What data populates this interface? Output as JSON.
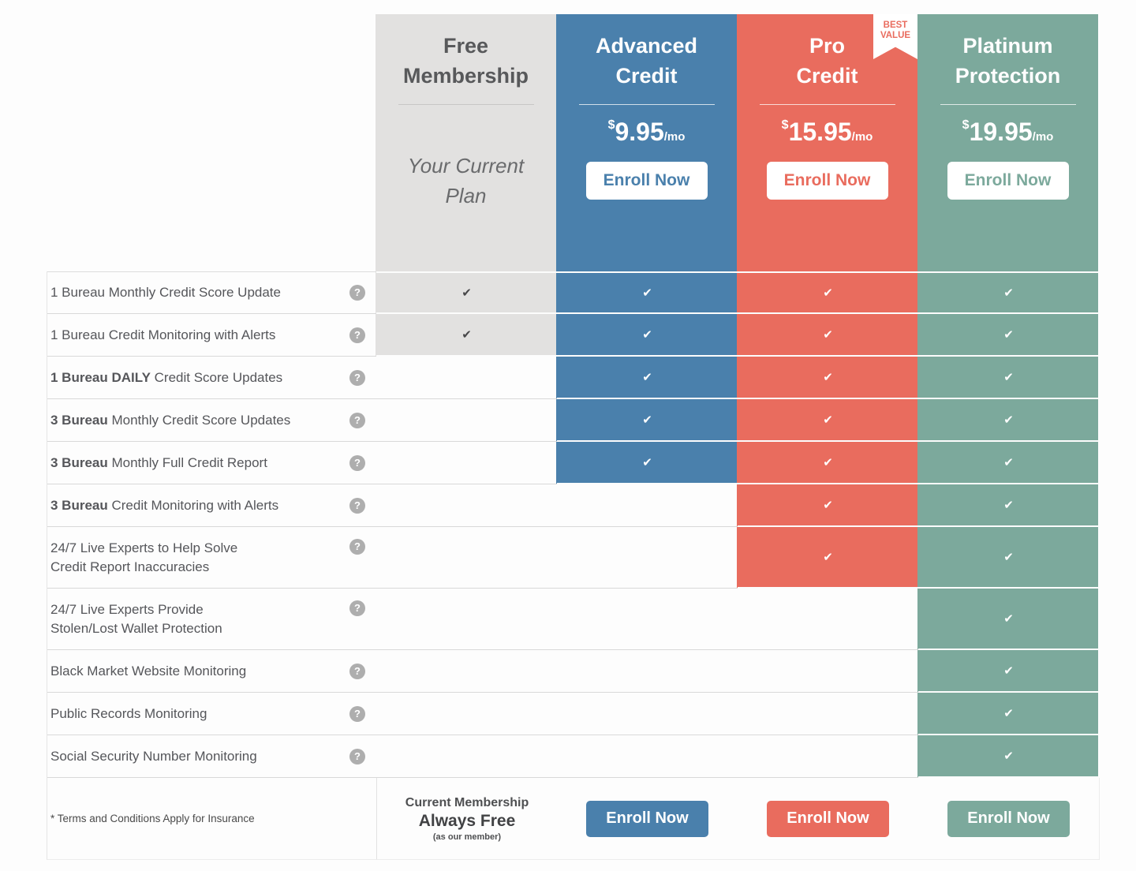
{
  "colors": {
    "free_bg": "#e2e1e0",
    "advanced": "#4a80ac",
    "pro": "#e96c5e",
    "platinum": "#7ca99c",
    "label_text": "#55565a"
  },
  "header": {
    "free": {
      "title": "Free\nMembership",
      "subtitle": "Your Current\nPlan"
    },
    "advanced": {
      "title": "Advanced\nCredit",
      "currency": "$",
      "price": "9.95",
      "per": "/mo",
      "cta": "Enroll Now"
    },
    "pro": {
      "title": "Pro\nCredit",
      "currency": "$",
      "price": "15.95",
      "per": "/mo",
      "cta": "Enroll Now",
      "badge_line1": "BEST",
      "badge_line2": "VALUE"
    },
    "platinum": {
      "title": "Platinum\nProtection",
      "currency": "$",
      "price": "19.95",
      "per": "/mo",
      "cta": "Enroll Now"
    }
  },
  "help_icon": "?",
  "features": [
    {
      "bold": "",
      "text": "1 Bureau Monthly Credit Score Update",
      "checks": [
        "✔",
        "✔",
        "✔",
        "✔"
      ]
    },
    {
      "bold": "",
      "text": "1 Bureau Credit Monitoring with Alerts",
      "checks": [
        "✔",
        "✔",
        "✔",
        "✔"
      ]
    },
    {
      "bold": "1 Bureau DAILY",
      "text": " Credit Score Updates",
      "checks": [
        "",
        "✔",
        "✔",
        "✔"
      ]
    },
    {
      "bold": "3 Bureau",
      "text": " Monthly Credit Score Updates",
      "checks": [
        "",
        "✔",
        "✔",
        "✔"
      ]
    },
    {
      "bold": "3 Bureau",
      "text": " Monthly Full Credit Report",
      "checks": [
        "",
        "✔",
        "✔",
        "✔"
      ]
    },
    {
      "bold": "3 Bureau",
      "text": " Credit Monitoring with Alerts",
      "checks": [
        "",
        "",
        "✔",
        "✔"
      ]
    },
    {
      "bold": "",
      "text": "24/7 Live Experts to Help Solve\nCredit Report Inaccuracies",
      "checks": [
        "",
        "",
        "✔",
        "✔"
      ]
    },
    {
      "bold": "",
      "text": "24/7 Live Experts Provide\nStolen/Lost Wallet Protection",
      "checks": [
        "",
        "",
        "",
        "✔"
      ]
    },
    {
      "bold": "",
      "text": "Black Market Website Monitoring",
      "checks": [
        "",
        "",
        "",
        "✔"
      ]
    },
    {
      "bold": "",
      "text": "Public Records Monitoring",
      "checks": [
        "",
        "",
        "",
        "✔"
      ]
    },
    {
      "bold": "",
      "text": "Social Security Number Monitoring",
      "checks": [
        "",
        "",
        "",
        "✔"
      ]
    }
  ],
  "footer": {
    "terms": "* Terms and Conditions Apply for Insurance",
    "free_line1": "Current Membership",
    "free_line2": "Always Free",
    "free_line3": "(as our member)",
    "cta": "Enroll Now"
  }
}
